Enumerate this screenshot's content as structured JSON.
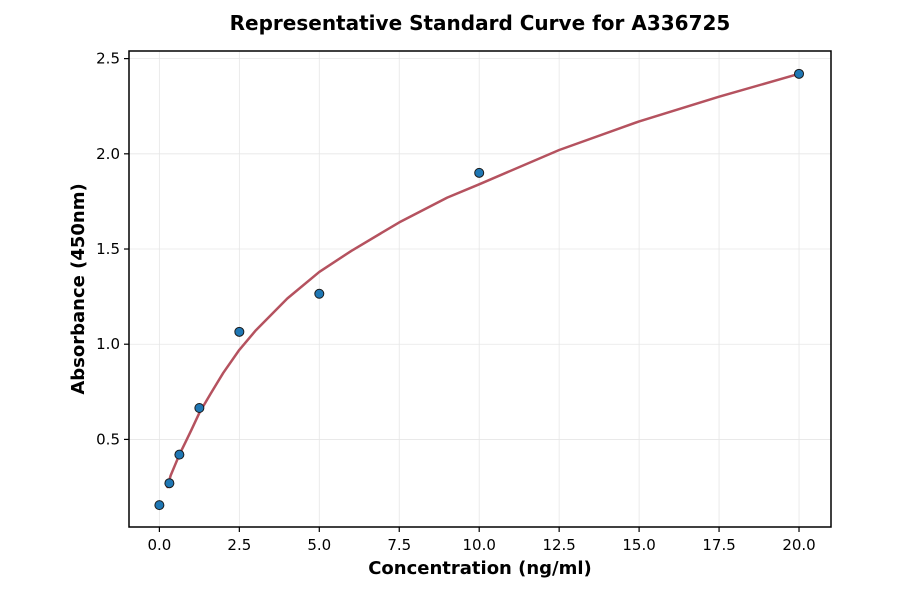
{
  "chart_data": {
    "type": "scatter",
    "title": "Representative Standard Curve for A336725",
    "xlabel": "Concentration (ng/ml)",
    "ylabel": "Absorbance (450nm)",
    "xlim": [
      -0.95,
      21.0
    ],
    "ylim": [
      0.04,
      2.54
    ],
    "x_ticks": [
      0.0,
      2.5,
      5.0,
      7.5,
      10.0,
      12.5,
      15.0,
      17.5,
      20.0
    ],
    "x_tick_labels": [
      "0.0",
      "2.5",
      "5.0",
      "7.5",
      "10.0",
      "12.5",
      "15.0",
      "17.5",
      "20.0"
    ],
    "y_ticks": [
      0.5,
      1.0,
      1.5,
      2.0,
      2.5
    ],
    "y_tick_labels": [
      "0.5",
      "1.0",
      "1.5",
      "2.0",
      "2.5"
    ],
    "grid": true,
    "series": [
      {
        "kind": "points",
        "color": "#1f77b4",
        "x": [
          0.0,
          0.3125,
          0.625,
          1.25,
          2.5,
          5.0,
          10.0,
          20.0
        ],
        "y": [
          0.155,
          0.27,
          0.42,
          0.665,
          1.065,
          1.265,
          1.9,
          2.42
        ]
      },
      {
        "kind": "fit-curve",
        "color": "#b5525f",
        "x": [
          0.25,
          0.35,
          0.5,
          0.625,
          0.8,
          1.0,
          1.25,
          1.6,
          2.0,
          2.5,
          3.0,
          4.0,
          5.0,
          6.0,
          7.5,
          9.0,
          10.0,
          12.5,
          15.0,
          17.5,
          20.0
        ],
        "y": [
          0.25,
          0.31,
          0.37,
          0.42,
          0.48,
          0.55,
          0.64,
          0.74,
          0.85,
          0.97,
          1.07,
          1.24,
          1.38,
          1.49,
          1.64,
          1.77,
          1.84,
          2.02,
          2.17,
          2.3,
          2.42
        ]
      }
    ]
  },
  "colors": {
    "points": "#1f77b4",
    "curve": "#b5525f",
    "grid": "#e6e6e6",
    "axes": "#000000"
  }
}
